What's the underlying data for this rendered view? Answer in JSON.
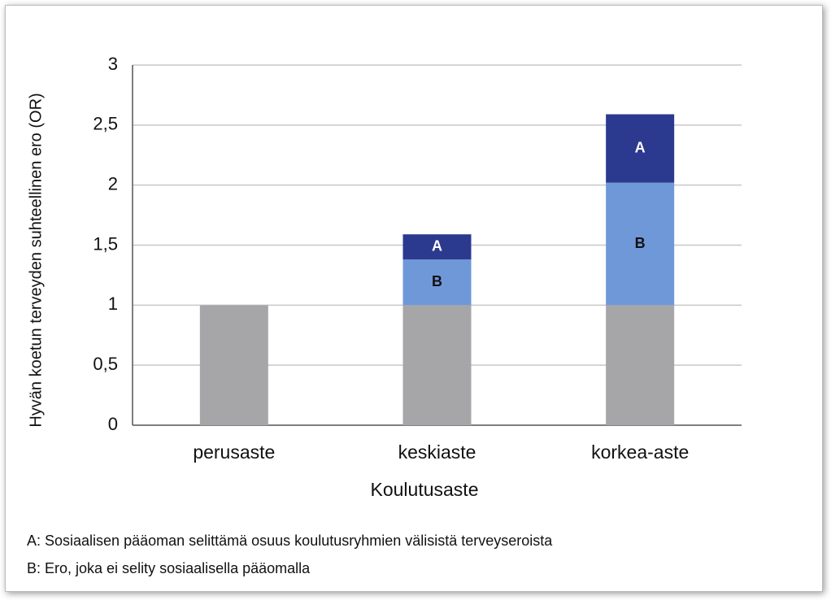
{
  "chart_data": {
    "type": "stacked_bar",
    "y_label": "Hyvän koetun terveyden suhteellinen ero (OR)",
    "x_label": "Koulutusaste",
    "categories": [
      "perusaste",
      "keskiaste",
      "korkea-aste"
    ],
    "series": [
      {
        "color": "#a6a6a9",
        "values": [
          1,
          1,
          1
        ]
      },
      {
        "name": "B",
        "color": "#6f98d8",
        "values": [
          0,
          0.38,
          1.02
        ]
      },
      {
        "name": "A",
        "color": "#2b3a8f",
        "values": [
          0,
          0.21,
          0.57
        ]
      }
    ],
    "ylim": [
      0,
      3
    ],
    "yticks": [
      0,
      {
        "value": 0.5,
        "label": "0,5"
      },
      1,
      {
        "value": 1.5,
        "label": "1,5"
      },
      2,
      {
        "value": 2.5,
        "label": "2,5"
      },
      3
    ],
    "grid": true,
    "notes": [
      "A:  Sosiaalisen pääoman selittämä osuus koulutusryhmien välisistä terveyseroista",
      "B: Ero, joka ei selity sosiaalisella pääomalla"
    ]
  }
}
